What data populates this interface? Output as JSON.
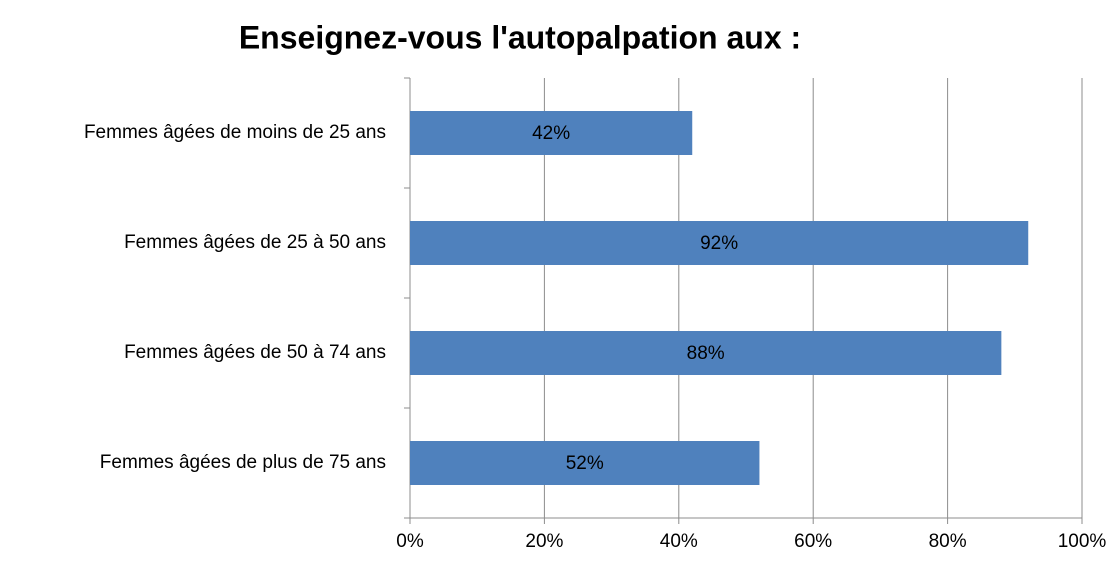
{
  "chart_data": {
    "type": "barh",
    "title": "Enseignez-vous l'autopalpation aux :",
    "categories": [
      "Femmes âgées de moins de 25 ans",
      "Femmes âgées de 25 à 50 ans",
      "Femmes âgées de 50 à 74 ans",
      "Femmes âgées de plus de 75 ans"
    ],
    "values": [
      42,
      92,
      88,
      52
    ],
    "value_labels": [
      "42%",
      "92%",
      "88%",
      "52%"
    ],
    "color": "#4f81bd",
    "xlim": [
      0,
      100
    ],
    "xticks": [
      {
        "value": 0,
        "label": "0%"
      },
      {
        "value": 20,
        "label": "20%"
      },
      {
        "value": 40,
        "label": "40%"
      },
      {
        "value": 60,
        "label": "60%"
      },
      {
        "value": 80,
        "label": "80%"
      },
      {
        "value": 100,
        "label": "100%"
      }
    ],
    "grid": true
  }
}
